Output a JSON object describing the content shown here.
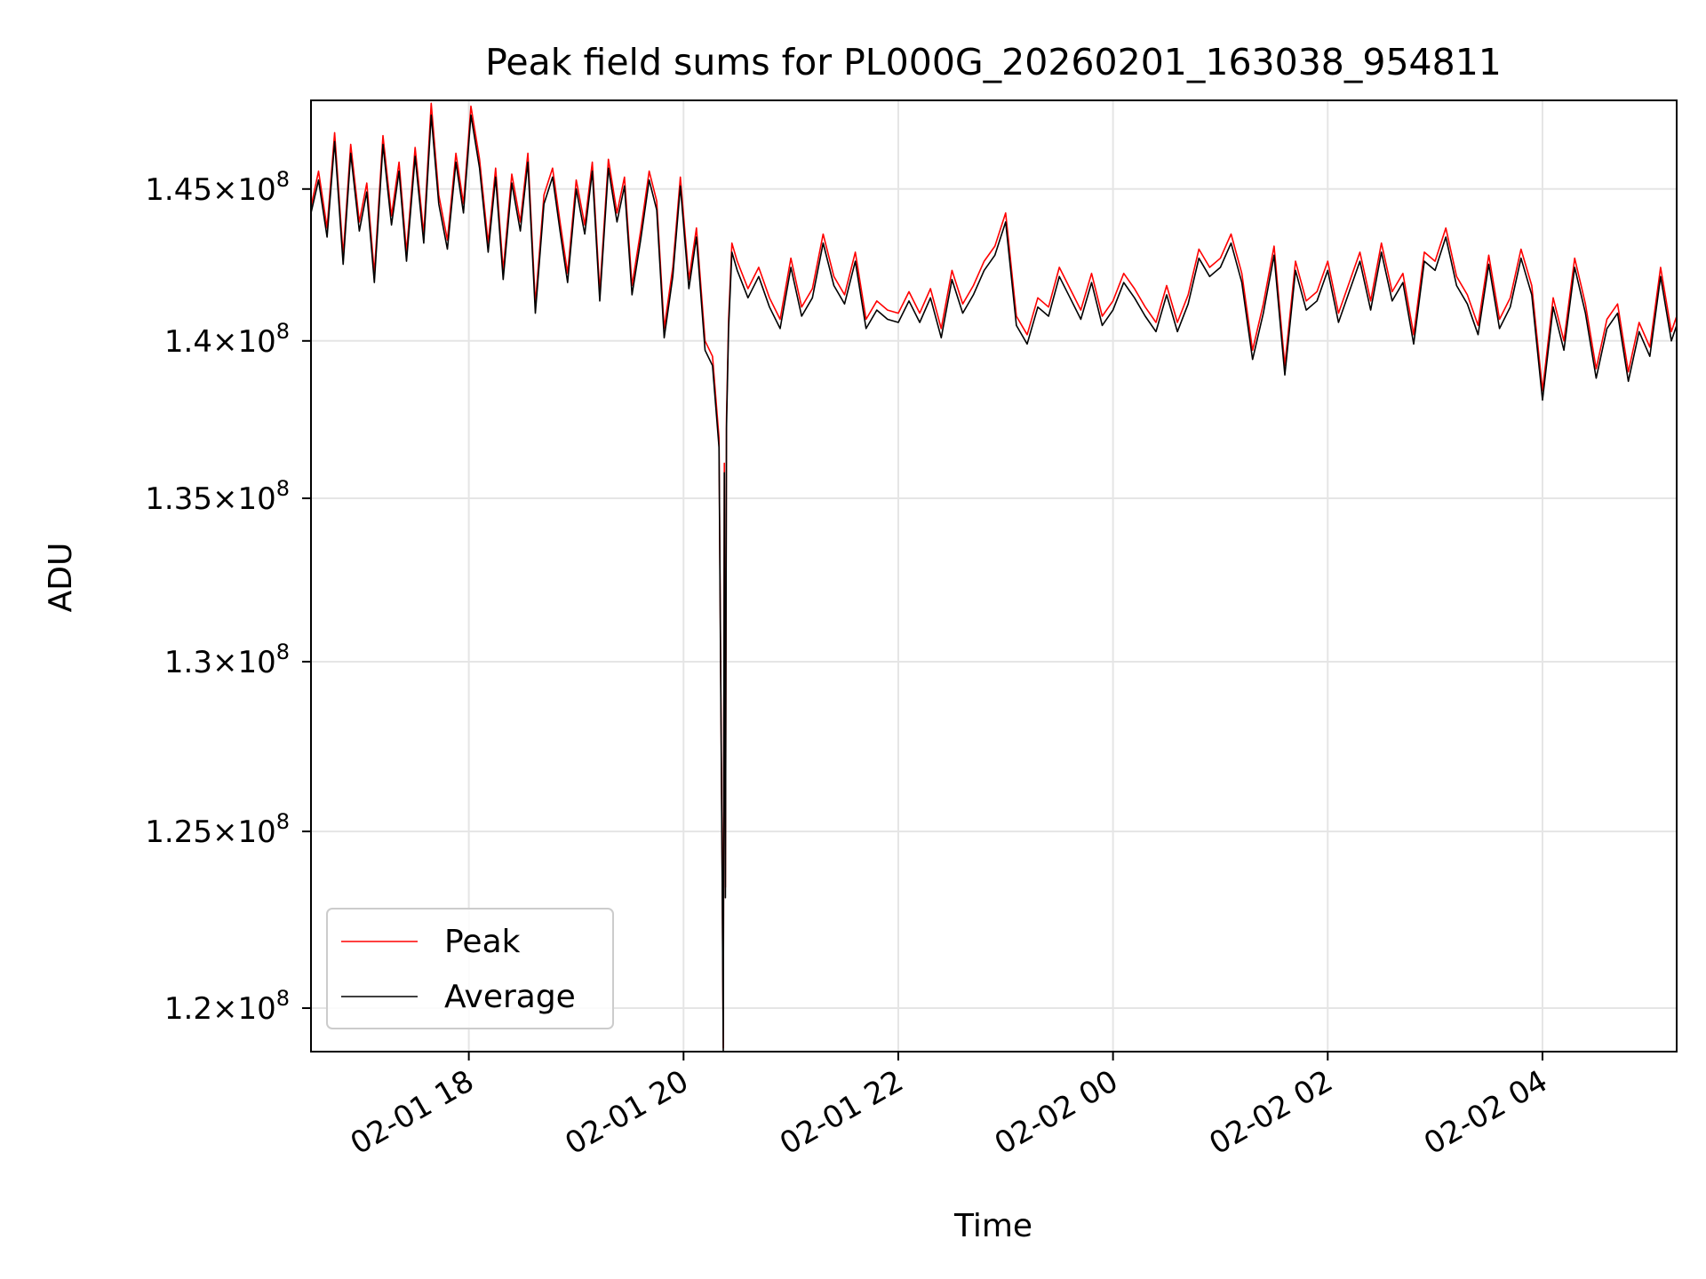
{
  "chart_data": {
    "type": "line",
    "title": "Peak field sums for PL000G_20260201_163038_954811",
    "xlabel": "Time",
    "ylabel": "ADU",
    "y_scale": "log",
    "x_hours_range": [
      16.53,
      29.25
    ],
    "ylim": [
      118800000,
      148000000
    ],
    "x_ticks": [
      {
        "hour": 18,
        "label": "02-01 18"
      },
      {
        "hour": 20,
        "label": "02-01 20"
      },
      {
        "hour": 22,
        "label": "02-01 22"
      },
      {
        "hour": 24,
        "label": "02-02 00"
      },
      {
        "hour": 26,
        "label": "02-02 02"
      },
      {
        "hour": 28,
        "label": "02-02 04"
      }
    ],
    "y_ticks": [
      {
        "value": 120000000,
        "mantissa": "1.2",
        "exponent": "8"
      },
      {
        "value": 125000000,
        "mantissa": "1.25",
        "exponent": "8"
      },
      {
        "value": 130000000,
        "mantissa": "1.3",
        "exponent": "8"
      },
      {
        "value": 135000000,
        "mantissa": "1.35",
        "exponent": "8"
      },
      {
        "value": 140000000,
        "mantissa": "1.4",
        "exponent": "8"
      },
      {
        "value": 145000000,
        "mantissa": "1.45",
        "exponent": "8"
      }
    ],
    "grid": true,
    "legend_position": "lower-left",
    "series": [
      {
        "name": "Peak",
        "color": "#ff0000",
        "x_hours": [
          16.53,
          16.6,
          16.68,
          16.75,
          16.83,
          16.9,
          16.98,
          17.05,
          17.12,
          17.2,
          17.28,
          17.35,
          17.42,
          17.5,
          17.58,
          17.65,
          17.72,
          17.8,
          17.88,
          17.95,
          18.02,
          18.1,
          18.18,
          18.25,
          18.32,
          18.4,
          18.48,
          18.55,
          18.62,
          18.7,
          18.78,
          18.85,
          18.92,
          19.0,
          19.08,
          19.15,
          19.22,
          19.3,
          19.38,
          19.45,
          19.52,
          19.6,
          19.68,
          19.75,
          19.82,
          19.9,
          19.97,
          20.05,
          20.12,
          20.2,
          20.27,
          20.33,
          20.36,
          20.37,
          20.38,
          20.39,
          20.4,
          20.42,
          20.45,
          20.5,
          20.6,
          20.7,
          20.8,
          20.9,
          21.0,
          21.1,
          21.2,
          21.3,
          21.4,
          21.5,
          21.6,
          21.7,
          21.8,
          21.9,
          22.0,
          22.1,
          22.2,
          22.3,
          22.4,
          22.5,
          22.6,
          22.7,
          22.8,
          22.9,
          23.0,
          23.1,
          23.2,
          23.3,
          23.4,
          23.5,
          23.6,
          23.7,
          23.8,
          23.9,
          24.0,
          24.1,
          24.2,
          24.3,
          24.4,
          24.5,
          24.6,
          24.7,
          24.8,
          24.9,
          25.0,
          25.1,
          25.2,
          25.3,
          25.4,
          25.5,
          25.6,
          25.7,
          25.8,
          25.9,
          26.0,
          26.1,
          26.2,
          26.3,
          26.4,
          26.5,
          26.6,
          26.7,
          26.8,
          26.9,
          27.0,
          27.1,
          27.2,
          27.3,
          27.4,
          27.5,
          27.6,
          27.7,
          27.8,
          27.9,
          28.0,
          28.1,
          28.2,
          28.3,
          28.4,
          28.5,
          28.6,
          28.7,
          28.8,
          28.9,
          29.0,
          29.1,
          29.2,
          29.25
        ],
        "values": [
          144400000,
          145600000,
          143700000,
          146900000,
          142800000,
          146500000,
          143900000,
          145200000,
          142200000,
          146800000,
          144100000,
          145900000,
          142900000,
          146400000,
          143500000,
          147900000,
          144800000,
          143300000,
          146200000,
          144500000,
          147800000,
          146000000,
          143200000,
          145700000,
          142300000,
          145500000,
          143900000,
          146200000,
          141200000,
          144800000,
          145700000,
          143900000,
          142200000,
          145300000,
          143800000,
          145900000,
          141600000,
          146000000,
          144200000,
          145400000,
          141800000,
          143600000,
          145600000,
          144600000,
          140400000,
          142400000,
          145400000,
          142000000,
          143700000,
          140000000,
          139500000,
          136900000,
          123800000,
          118900000,
          136100000,
          123400000,
          137500000,
          140700000,
          143200000,
          142600000,
          141700000,
          142400000,
          141400000,
          140700000,
          142700000,
          141100000,
          141700000,
          143500000,
          142100000,
          141500000,
          142900000,
          140700000,
          141300000,
          141000000,
          140900000,
          141600000,
          140900000,
          141700000,
          140400000,
          142300000,
          141200000,
          141800000,
          142600000,
          143100000,
          144200000,
          140800000,
          140200000,
          141400000,
          141100000,
          142400000,
          141700000,
          141000000,
          142200000,
          140800000,
          141300000,
          142200000,
          141700000,
          141100000,
          140600000,
          141800000,
          140600000,
          141500000,
          143000000,
          142400000,
          142700000,
          143500000,
          142200000,
          139700000,
          141200000,
          143100000,
          139200000,
          142600000,
          141300000,
          141600000,
          142600000,
          140900000,
          141900000,
          142900000,
          141300000,
          143200000,
          141600000,
          142200000,
          140200000,
          142900000,
          142600000,
          143700000,
          142100000,
          141500000,
          140500000,
          142800000,
          140700000,
          141400000,
          143000000,
          141800000,
          138400000,
          141400000,
          140000000,
          142700000,
          141200000,
          139100000,
          140700000,
          141200000,
          139000000,
          140600000,
          139800000,
          142400000,
          140300000,
          140800000
        ]
      },
      {
        "name": "Average",
        "color": "#000000",
        "x_hours": [
          16.53,
          16.6,
          16.68,
          16.75,
          16.83,
          16.9,
          16.98,
          17.05,
          17.12,
          17.2,
          17.28,
          17.35,
          17.42,
          17.5,
          17.58,
          17.65,
          17.72,
          17.8,
          17.88,
          17.95,
          18.02,
          18.1,
          18.18,
          18.25,
          18.32,
          18.4,
          18.48,
          18.55,
          18.62,
          18.7,
          18.78,
          18.85,
          18.92,
          19.0,
          19.08,
          19.15,
          19.22,
          19.3,
          19.38,
          19.45,
          19.52,
          19.6,
          19.68,
          19.75,
          19.82,
          19.9,
          19.97,
          20.05,
          20.12,
          20.2,
          20.27,
          20.33,
          20.36,
          20.37,
          20.38,
          20.39,
          20.4,
          20.42,
          20.45,
          20.5,
          20.6,
          20.7,
          20.8,
          20.9,
          21.0,
          21.1,
          21.2,
          21.3,
          21.4,
          21.5,
          21.6,
          21.7,
          21.8,
          21.9,
          22.0,
          22.1,
          22.2,
          22.3,
          22.4,
          22.5,
          22.6,
          22.7,
          22.8,
          22.9,
          23.0,
          23.1,
          23.2,
          23.3,
          23.4,
          23.5,
          23.6,
          23.7,
          23.8,
          23.9,
          24.0,
          24.1,
          24.2,
          24.3,
          24.4,
          24.5,
          24.6,
          24.7,
          24.8,
          24.9,
          25.0,
          25.1,
          25.2,
          25.3,
          25.4,
          25.5,
          25.6,
          25.7,
          25.8,
          25.9,
          26.0,
          26.1,
          26.2,
          26.3,
          26.4,
          26.5,
          26.6,
          26.7,
          26.8,
          26.9,
          27.0,
          27.1,
          27.2,
          27.3,
          27.4,
          27.5,
          27.6,
          27.7,
          27.8,
          27.9,
          28.0,
          28.1,
          28.2,
          28.3,
          28.4,
          28.5,
          28.6,
          28.7,
          28.8,
          28.9,
          29.0,
          29.1,
          29.2,
          29.25
        ],
        "values": [
          144200000,
          145300000,
          143400000,
          146600000,
          142500000,
          146200000,
          143600000,
          144900000,
          141900000,
          146500000,
          143800000,
          145600000,
          142600000,
          146100000,
          143200000,
          147500000,
          144500000,
          143000000,
          145900000,
          144200000,
          147500000,
          145700000,
          142900000,
          145400000,
          142000000,
          145200000,
          143600000,
          145900000,
          140900000,
          144500000,
          145400000,
          143600000,
          141900000,
          145000000,
          143500000,
          145600000,
          141300000,
          145700000,
          143900000,
          145100000,
          141500000,
          143300000,
          145300000,
          144300000,
          140100000,
          142100000,
          145100000,
          141700000,
          143400000,
          139700000,
          139200000,
          136600000,
          123500000,
          118800000,
          135800000,
          123100000,
          137200000,
          140400000,
          142900000,
          142300000,
          141400000,
          142100000,
          141100000,
          140400000,
          142400000,
          140800000,
          141400000,
          143200000,
          141800000,
          141200000,
          142600000,
          140400000,
          141000000,
          140700000,
          140600000,
          141300000,
          140600000,
          141400000,
          140100000,
          142000000,
          140900000,
          141500000,
          142300000,
          142800000,
          143900000,
          140500000,
          139900000,
          141100000,
          140800000,
          142100000,
          141400000,
          140700000,
          141900000,
          140500000,
          141000000,
          141900000,
          141400000,
          140800000,
          140300000,
          141500000,
          140300000,
          141200000,
          142700000,
          142100000,
          142400000,
          143200000,
          141900000,
          139400000,
          140900000,
          142800000,
          138900000,
          142300000,
          141000000,
          141300000,
          142300000,
          140600000,
          141600000,
          142600000,
          141000000,
          142900000,
          141300000,
          141900000,
          139900000,
          142600000,
          142300000,
          143400000,
          141800000,
          141200000,
          140200000,
          142500000,
          140400000,
          141100000,
          142700000,
          141500000,
          138100000,
          141100000,
          139700000,
          142400000,
          140900000,
          138800000,
          140400000,
          140900000,
          138700000,
          140300000,
          139500000,
          142100000,
          140000000,
          140500000
        ]
      }
    ]
  }
}
